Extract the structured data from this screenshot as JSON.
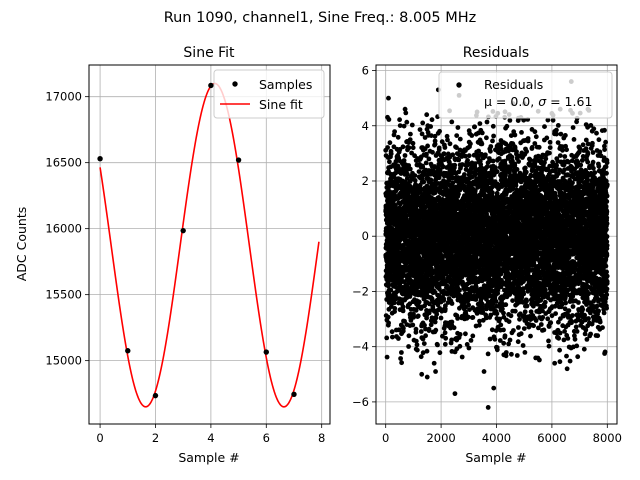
{
  "suptitle": "Run 1090, channel1, Sine Freq.: 8.005 MHz",
  "chart_data": [
    {
      "type": "line",
      "title": "Sine Fit",
      "xlabel": "Sample #",
      "ylabel": "ADC Counts",
      "xlim": [
        -0.4,
        8.3
      ],
      "ylim": [
        14520,
        17240
      ],
      "grid": true,
      "xticks": [
        0,
        2,
        4,
        6,
        8
      ],
      "xtick_labels": [
        "0",
        "2",
        "4",
        "6",
        "8"
      ],
      "yticks": [
        15000,
        15500,
        16000,
        16500,
        17000
      ],
      "ytick_labels": [
        "15000",
        "15500",
        "16000",
        "16500",
        "17000"
      ],
      "series": [
        {
          "name": "Samples",
          "kind": "scatter",
          "color": "#000000",
          "x": [
            0,
            1,
            2,
            3,
            4,
            5,
            6,
            7
          ],
          "y": [
            16530,
            15075,
            14735,
            15985,
            17085,
            16520,
            15065,
            14745
          ]
        },
        {
          "name": "Sine fit",
          "kind": "line",
          "color": "#ff0000",
          "model": {
            "amplitude": 1225,
            "offset": 15875,
            "period": 4.99,
            "phase": 2.64
          },
          "x_range": [
            0,
            7.9
          ]
        }
      ],
      "legend": {
        "position": "top-right",
        "entries": [
          "Samples",
          "Sine fit"
        ]
      }
    },
    {
      "type": "scatter",
      "title": "Residuals",
      "xlabel": "Sample #",
      "ylabel": "",
      "xlim": [
        -350,
        8350
      ],
      "ylim": [
        -6.8,
        6.2
      ],
      "grid": true,
      "xticks": [
        0,
        2000,
        4000,
        6000,
        8000
      ],
      "xtick_labels": [
        "0",
        "2000",
        "4000",
        "6000",
        "8000"
      ],
      "yticks": [
        -6,
        -4,
        -2,
        0,
        2,
        4,
        6
      ],
      "ytick_labels": [
        "−6",
        "−4",
        "−2",
        "0",
        "2",
        "4",
        "6"
      ],
      "series": [
        {
          "name": "Residuals",
          "color": "#000000",
          "n_points": 8000,
          "x_range": [
            0,
            7999
          ],
          "distribution": {
            "mean": 0.0,
            "sigma": 1.61
          },
          "outliers": [
            {
              "x": 3700,
              "y": -6.2
            },
            {
              "x": 2500,
              "y": -5.7
            },
            {
              "x": 3900,
              "y": -5.5
            },
            {
              "x": 6700,
              "y": 5.6
            },
            {
              "x": 1900,
              "y": 5.3
            },
            {
              "x": 2650,
              "y": 5.1
            },
            {
              "x": 100,
              "y": 5.0
            },
            {
              "x": 1300,
              "y": -5.0
            },
            {
              "x": 1500,
              "y": -5.1
            },
            {
              "x": 1800,
              "y": -4.9
            },
            {
              "x": 3550,
              "y": -4.9
            },
            {
              "x": 4600,
              "y": 4.8
            },
            {
              "x": 5000,
              "y": 4.8
            },
            {
              "x": 6100,
              "y": -4.6
            },
            {
              "x": 6550,
              "y": -4.8
            },
            {
              "x": 6300,
              "y": 4.6
            },
            {
              "x": 7300,
              "y": 4.6
            },
            {
              "x": 700,
              "y": 4.6
            },
            {
              "x": 1750,
              "y": -4.6
            },
            {
              "x": 3300,
              "y": 4.5
            }
          ]
        }
      ],
      "legend": {
        "position": "top-right",
        "line1": "Residuals",
        "line2_prefix": "μ = 0.0, ",
        "line2_sigma_symbol": "σ",
        "line2_suffix": " = 1.61"
      }
    }
  ]
}
